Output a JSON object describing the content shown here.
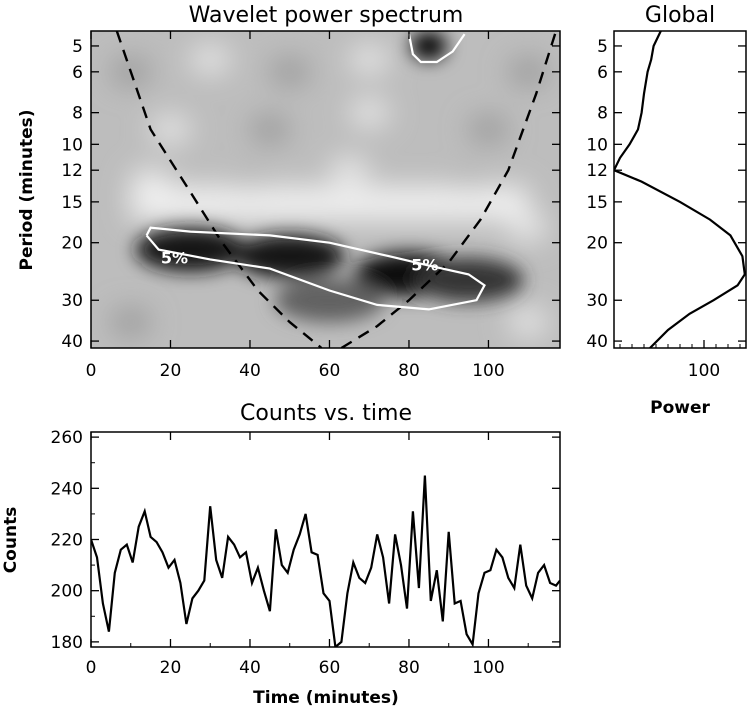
{
  "chart_data": [
    {
      "type": "heatmap",
      "title": "Wavelet power spectrum",
      "xlabel": "",
      "ylabel": "Period (minutes)",
      "xlim": [
        0,
        118
      ],
      "ylim": [
        4.5,
        42
      ],
      "yscale": "log",
      "xticks": [
        0,
        20,
        40,
        60,
        80,
        100
      ],
      "yticks": [
        5,
        6,
        8,
        10,
        12,
        15,
        20,
        30,
        40
      ],
      "power_peaks": [
        {
          "t": 85,
          "period": 5.0,
          "strength": 1.0
        },
        {
          "t": 25,
          "period": 21,
          "strength": 0.9
        },
        {
          "t": 50,
          "period": 22,
          "strength": 0.9
        },
        {
          "t": 80,
          "period": 25,
          "strength": 0.95
        },
        {
          "t": 95,
          "period": 26,
          "strength": 0.7
        },
        {
          "t": 60,
          "period": 30,
          "strength": 0.45
        }
      ],
      "significance_contours": [
        {
          "label": "5%",
          "label_position": {
            "t": 21,
            "period": 22.2
          },
          "label2_position": {
            "t": 84,
            "period": 23.3
          },
          "points": [
            [
              14,
              19
            ],
            [
              15,
              18
            ],
            [
              25,
              18.5
            ],
            [
              45,
              19
            ],
            [
              60,
              20
            ],
            [
              75,
              22
            ],
            [
              85,
              23.5
            ],
            [
              95,
              25
            ],
            [
              99,
              27
            ],
            [
              97,
              30
            ],
            [
              85,
              32
            ],
            [
              72,
              31
            ],
            [
              60,
              28
            ],
            [
              45,
              24
            ],
            [
              30,
              22.5
            ],
            [
              17,
              21
            ],
            [
              14,
              19
            ]
          ]
        },
        {
          "label": "",
          "points": [
            [
              80,
              4.6
            ],
            [
              81,
              5.3
            ],
            [
              83,
              5.6
            ],
            [
              87,
              5.6
            ],
            [
              91,
              5.2
            ],
            [
              94,
              4.6
            ]
          ]
        }
      ],
      "cone_of_influence": {
        "left": [
          [
            6.5,
            4.5
          ],
          [
            15,
            9
          ],
          [
            25,
            14
          ],
          [
            33,
            20
          ],
          [
            42,
            28
          ],
          [
            50,
            35
          ],
          [
            58,
            42
          ]
        ],
        "right": [
          [
            63,
            42
          ],
          [
            72,
            36
          ],
          [
            80,
            30
          ],
          [
            90,
            23
          ],
          [
            98,
            17
          ],
          [
            105,
            12
          ],
          [
            112,
            7
          ],
          [
            117,
            4.5
          ]
        ]
      },
      "colors": {
        "max": "#000000",
        "min": "#ffffff",
        "contour": "#ffffff",
        "coi": "#000000"
      }
    },
    {
      "type": "line",
      "title": "Global",
      "xlabel": "Power",
      "ylabel": "",
      "xlim": [
        25,
        135
      ],
      "ylim": [
        4.5,
        42
      ],
      "yscale": "log",
      "xticks": [
        100
      ],
      "yticks": [
        5,
        6,
        8,
        10,
        12,
        15,
        20,
        30,
        40
      ],
      "x": [
        64,
        58,
        56,
        53,
        50,
        48,
        45,
        38,
        30,
        25,
        48,
        80,
        105,
        122,
        132,
        134,
        128,
        108,
        88,
        70,
        55
      ],
      "y": [
        4.5,
        5,
        5.5,
        6,
        7,
        8,
        9,
        10,
        11,
        12,
        13,
        15,
        17,
        19,
        22,
        25,
        27,
        30,
        33,
        37,
        42
      ]
    },
    {
      "type": "line",
      "title": "Counts vs. time",
      "xlabel": "Time (minutes)",
      "ylabel": "Counts",
      "xlim": [
        0,
        118
      ],
      "ylim": [
        178,
        262
      ],
      "xticks": [
        0,
        20,
        40,
        60,
        80,
        100
      ],
      "yticks": [
        180,
        200,
        220,
        240,
        260
      ],
      "x": [
        0,
        1.5,
        3,
        4.5,
        6,
        7.5,
        9,
        10.5,
        12,
        13.5,
        15,
        16.5,
        18,
        19.5,
        21,
        22.5,
        24,
        25.5,
        27,
        28.5,
        30,
        31.5,
        33,
        34.5,
        36,
        37.5,
        39,
        40.5,
        42,
        43.5,
        45,
        46.5,
        48,
        49.5,
        51,
        52.5,
        54,
        55.5,
        57,
        58.5,
        60,
        61.5,
        63,
        64.5,
        66,
        67.5,
        69,
        70.5,
        72,
        73.5,
        75,
        76.5,
        78,
        79.5,
        81,
        82.5,
        84,
        85.5,
        87,
        88.5,
        90,
        91.5,
        93,
        94.5,
        96,
        97.5,
        99,
        100.5,
        102,
        103.5,
        105,
        106.5,
        108,
        109.5,
        111,
        112.5,
        114,
        115.5,
        117,
        118
      ],
      "values": [
        220,
        213,
        195,
        184,
        207,
        216,
        218,
        211,
        225,
        231,
        221,
        219,
        215,
        209,
        212,
        203,
        187,
        197,
        200,
        204,
        233,
        212,
        205,
        221,
        218,
        213,
        215,
        203,
        209,
        200,
        192,
        224,
        210,
        207,
        216,
        222,
        230,
        215,
        214,
        199,
        196,
        178,
        180,
        199,
        211,
        205,
        203,
        209,
        222,
        213,
        195,
        222,
        210,
        193,
        231,
        201,
        245,
        196,
        208,
        188,
        223,
        195,
        196,
        183,
        179,
        199,
        207,
        208,
        216,
        213,
        205,
        201,
        218,
        202,
        197,
        207,
        210,
        203,
        202,
        204
      ],
      "colors": {
        "line": "#000000"
      }
    }
  ],
  "labels": {
    "contour_label_1": "5%",
    "contour_label_2": "5%"
  }
}
